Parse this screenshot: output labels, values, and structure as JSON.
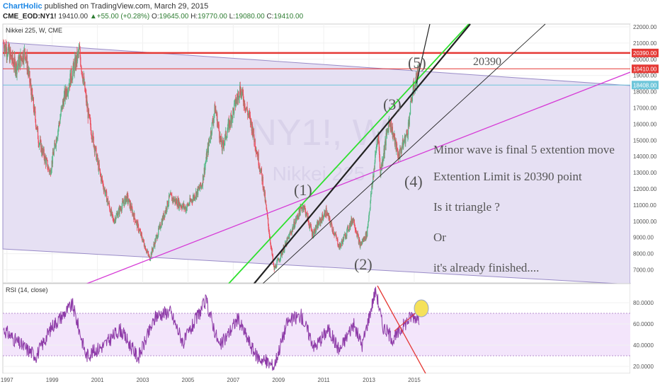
{
  "header": {
    "brand": "ChartHolic",
    "published": " published on TradingView.com, March 29, 2015",
    "symbol": "CME_EOD:NY1!",
    "last": "19410.00",
    "change_arrow": "▲",
    "change": "+55.00 (+0.28%)",
    "o_label": "O:",
    "o": "19645.00",
    "h_label": "H:",
    "h": "19770.00",
    "l_label": "L:",
    "l": "19080.00",
    "c_label": "C:",
    "c": "19410.00"
  },
  "price_pane": {
    "legend": "Nikkei 225, W, CME",
    "watermark_symbol": "NY1!, W",
    "watermark_name": "Nikkei 225",
    "colors": {
      "channel_fill": "#e6e0f3",
      "candle_up": "#53b987",
      "candle_down": "#eb4d5c",
      "red_line": "#e53935",
      "cyan_line": "#8ed7e6",
      "green_line": "#2ee02e",
      "magenta_line": "#d63bd6",
      "black_line": "#111111"
    }
  },
  "rsi_pane": {
    "legend": "RSI (14, close)",
    "upper_band": 70,
    "lower_band": 30,
    "line_color": "#8e3ba8",
    "band_fill": "#f3e5fb",
    "marker_color": "#f5e15a"
  },
  "annotations": {
    "w1": "(1)",
    "w2": "(2)",
    "w3": "(3)",
    "w4": "(4)",
    "w5": "(5)",
    "level": "20390",
    "note1": "Minor wave  is  final 5 extention move",
    "note2": "Extention Limit   is  20390 point",
    "note3": "Is it  triangle ?",
    "note4": "Or",
    "note5": "it's already finished...."
  },
  "chart_data": [
    {
      "type": "candlestick",
      "title": "Nikkei 225, W, CME",
      "x_ticks": [
        "1997",
        "1999",
        "2001",
        "2003",
        "2005",
        "2007",
        "2009",
        "2011",
        "2013",
        "2015"
      ],
      "y_ticks": [
        "22000.00",
        "21000.00",
        "20000.00",
        "19000.00",
        "18000.00",
        "17000.00",
        "16000.00",
        "15000.00",
        "14000.00",
        "13000.00",
        "12000.00",
        "11000.00",
        "10000.00",
        "9000.00",
        "8000.00",
        "7000.00"
      ],
      "ylim": [
        6200,
        22300
      ],
      "price_labels": [
        {
          "value": 20390,
          "text": "20390.00",
          "color": "#e53935"
        },
        {
          "value": 19410,
          "text": "19410.00",
          "color": "#e53935"
        },
        {
          "value": 18408,
          "text": "18408.00",
          "color": "#6fc6da"
        }
      ],
      "series_anchors": [
        {
          "x": 1996.85,
          "y": 21000
        },
        {
          "x": 1997.4,
          "y": 19500
        },
        {
          "x": 1997.8,
          "y": 20500
        },
        {
          "x": 1998.4,
          "y": 15000
        },
        {
          "x": 1998.9,
          "y": 13000
        },
        {
          "x": 1999.5,
          "y": 17500
        },
        {
          "x": 2000.2,
          "y": 20500
        },
        {
          "x": 2000.6,
          "y": 16500
        },
        {
          "x": 2001.1,
          "y": 13000
        },
        {
          "x": 2001.7,
          "y": 10000
        },
        {
          "x": 2002.3,
          "y": 11500
        },
        {
          "x": 2003.3,
          "y": 7700
        },
        {
          "x": 2004.2,
          "y": 11500
        },
        {
          "x": 2004.9,
          "y": 10800
        },
        {
          "x": 2005.6,
          "y": 12200
        },
        {
          "x": 2006.2,
          "y": 17000
        },
        {
          "x": 2006.5,
          "y": 14500
        },
        {
          "x": 2007.3,
          "y": 18200
        },
        {
          "x": 2007.8,
          "y": 16000
        },
        {
          "x": 2008.3,
          "y": 12500
        },
        {
          "x": 2008.8,
          "y": 7000
        },
        {
          "x": 2009.3,
          "y": 8500
        },
        {
          "x": 2009.9,
          "y": 10500
        },
        {
          "x": 2010.1,
          "y": 11000
        },
        {
          "x": 2010.5,
          "y": 9200
        },
        {
          "x": 2011.1,
          "y": 10600
        },
        {
          "x": 2011.7,
          "y": 8400
        },
        {
          "x": 2012.3,
          "y": 10200
        },
        {
          "x": 2012.6,
          "y": 8500
        },
        {
          "x": 2012.9,
          "y": 9200
        },
        {
          "x": 2013.4,
          "y": 15500
        },
        {
          "x": 2013.5,
          "y": 13000
        },
        {
          "x": 2013.9,
          "y": 16300
        },
        {
          "x": 2014.3,
          "y": 14000
        },
        {
          "x": 2014.7,
          "y": 15500
        },
        {
          "x": 2014.9,
          "y": 17800
        },
        {
          "x": 2015.22,
          "y": 19410
        }
      ]
    },
    {
      "type": "line",
      "title": "RSI (14, close)",
      "y_ticks": [
        "80.0000",
        "60.0000",
        "40.0000",
        "20.0000"
      ],
      "ylim": [
        14,
        97
      ],
      "bands": [
        30,
        70
      ],
      "series_anchors": [
        {
          "x": 1996.85,
          "y": 55
        },
        {
          "x": 1997.5,
          "y": 42
        },
        {
          "x": 1998.3,
          "y": 30
        },
        {
          "x": 1999.0,
          "y": 58
        },
        {
          "x": 1999.9,
          "y": 78
        },
        {
          "x": 2000.5,
          "y": 30
        },
        {
          "x": 2001.3,
          "y": 40
        },
        {
          "x": 2002.0,
          "y": 55
        },
        {
          "x": 2002.8,
          "y": 28
        },
        {
          "x": 2003.6,
          "y": 68
        },
        {
          "x": 2004.2,
          "y": 72
        },
        {
          "x": 2004.8,
          "y": 42
        },
        {
          "x": 2005.8,
          "y": 82
        },
        {
          "x": 2006.4,
          "y": 38
        },
        {
          "x": 2007.2,
          "y": 65
        },
        {
          "x": 2008.0,
          "y": 30
        },
        {
          "x": 2008.8,
          "y": 20
        },
        {
          "x": 2009.4,
          "y": 62
        },
        {
          "x": 2010.0,
          "y": 68
        },
        {
          "x": 2010.6,
          "y": 38
        },
        {
          "x": 2011.2,
          "y": 55
        },
        {
          "x": 2011.7,
          "y": 35
        },
        {
          "x": 2012.3,
          "y": 60
        },
        {
          "x": 2012.7,
          "y": 40
        },
        {
          "x": 2013.3,
          "y": 93
        },
        {
          "x": 2013.6,
          "y": 58
        },
        {
          "x": 2014.1,
          "y": 45
        },
        {
          "x": 2014.5,
          "y": 58
        },
        {
          "x": 2014.9,
          "y": 68
        },
        {
          "x": 2015.22,
          "y": 66
        }
      ]
    }
  ]
}
